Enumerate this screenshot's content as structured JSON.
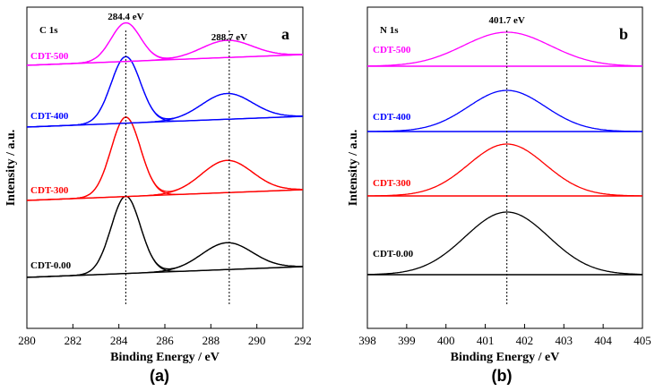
{
  "chart_data": [
    {
      "type": "line",
      "panel_letter": "a",
      "core_label": "C 1s",
      "subcaption": "(a)",
      "xlabel": "Binding Energy / eV",
      "ylabel": "Intensity / a.u.",
      "xlim": [
        280,
        292
      ],
      "xticks": [
        "280",
        "282",
        "284",
        "286",
        "288",
        "290",
        "292"
      ],
      "peak_markers": [
        {
          "x": 284.3,
          "label": "284.4 eV"
        },
        {
          "x": 288.8,
          "label": "288.7 eV"
        }
      ],
      "series": [
        {
          "name": "CDT-0.00",
          "color": "#000000",
          "components": [
            {
              "center": 284.3,
              "height": 0.72,
              "fwhm": 1.5
            },
            {
              "center": 288.7,
              "height": 0.25,
              "fwhm": 2.6
            }
          ]
        },
        {
          "name": "CDT-300",
          "color": "#ff0000",
          "components": [
            {
              "center": 284.3,
              "height": 0.74,
              "fwhm": 1.5
            },
            {
              "center": 288.7,
              "height": 0.3,
              "fwhm": 2.6
            }
          ]
        },
        {
          "name": "CDT-400",
          "color": "#0000ff",
          "components": [
            {
              "center": 284.3,
              "height": 0.62,
              "fwhm": 1.5
            },
            {
              "center": 288.7,
              "height": 0.24,
              "fwhm": 2.6
            }
          ]
        },
        {
          "name": "CDT-500",
          "color": "#ff00ff",
          "components": [
            {
              "center": 284.3,
              "height": 0.36,
              "fwhm": 1.5
            },
            {
              "center": 288.7,
              "height": 0.16,
              "fwhm": 2.6
            }
          ]
        }
      ]
    },
    {
      "type": "line",
      "panel_letter": "b",
      "core_label": "N 1s",
      "subcaption": "(b)",
      "xlabel": "Binding Energy / eV",
      "ylabel": "Intensity / a.u.",
      "xlim": [
        398,
        405
      ],
      "xticks": [
        "398",
        "399",
        "400",
        "401",
        "402",
        "403",
        "404",
        "405"
      ],
      "peak_markers": [
        {
          "x": 401.55,
          "label": "401.7 eV"
        }
      ],
      "series": [
        {
          "name": "CDT-0.00",
          "color": "#000000",
          "components": [
            {
              "center": 401.55,
              "height": 0.7,
              "fwhm": 2.5
            }
          ]
        },
        {
          "name": "CDT-300",
          "color": "#ff0000",
          "components": [
            {
              "center": 401.55,
              "height": 0.58,
              "fwhm": 2.3
            }
          ]
        },
        {
          "name": "CDT-400",
          "color": "#0000ff",
          "components": [
            {
              "center": 401.55,
              "height": 0.46,
              "fwhm": 2.3
            }
          ]
        },
        {
          "name": "CDT-500",
          "color": "#ff00ff",
          "components": [
            {
              "center": 401.55,
              "height": 0.38,
              "fwhm": 2.6
            }
          ]
        }
      ]
    }
  ]
}
